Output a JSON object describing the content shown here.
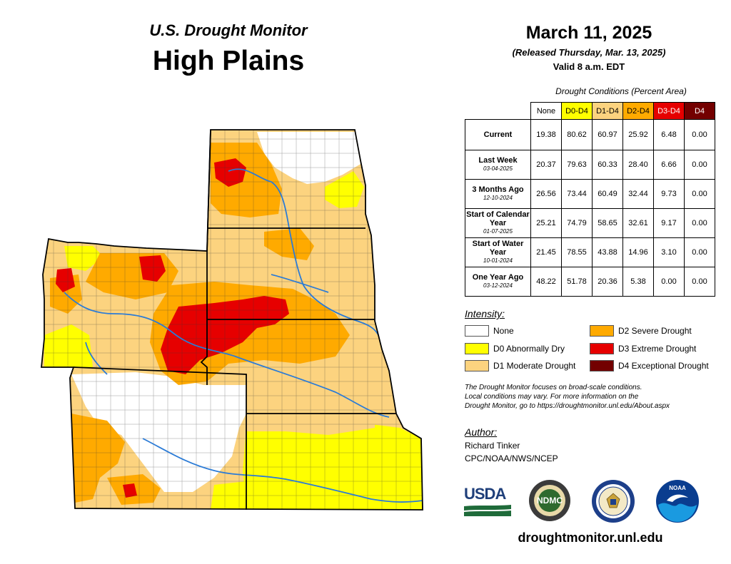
{
  "header": {
    "subtitle": "U.S. Drought Monitor",
    "region": "High Plains",
    "date": "March 11, 2025",
    "released": "(Released Thursday, Mar. 13, 2025)",
    "valid": "Valid 8 a.m. EDT"
  },
  "table": {
    "title": "Drought Conditions (Percent Area)",
    "columns": [
      "None",
      "D0-D4",
      "D1-D4",
      "D2-D4",
      "D3-D4",
      "D4"
    ],
    "column_colors": [
      "#ffffff",
      "#ffff00",
      "#fcd37f",
      "#ffaa00",
      "#e60000",
      "#730000"
    ],
    "rows": [
      {
        "label": "Current",
        "sublabel": "",
        "values": [
          "19.38",
          "80.62",
          "60.97",
          "25.92",
          "6.48",
          "0.00"
        ]
      },
      {
        "label": "Last Week",
        "sublabel": "03-04-2025",
        "values": [
          "20.37",
          "79.63",
          "60.33",
          "28.40",
          "6.66",
          "0.00"
        ]
      },
      {
        "label": "3 Months Ago",
        "sublabel": "12-10-2024",
        "values": [
          "26.56",
          "73.44",
          "60.49",
          "32.44",
          "9.73",
          "0.00"
        ]
      },
      {
        "label": "Start of Calendar Year",
        "sublabel": "01-07-2025",
        "values": [
          "25.21",
          "74.79",
          "58.65",
          "32.61",
          "9.17",
          "0.00"
        ]
      },
      {
        "label": "Start of Water Year",
        "sublabel": "10-01-2024",
        "values": [
          "21.45",
          "78.55",
          "43.88",
          "14.96",
          "3.10",
          "0.00"
        ]
      },
      {
        "label": "One Year Ago",
        "sublabel": "03-12-2024",
        "values": [
          "48.22",
          "51.78",
          "20.36",
          "5.38",
          "0.00",
          "0.00"
        ]
      }
    ]
  },
  "legend": {
    "title": "Intensity:",
    "items": [
      {
        "label": "None",
        "color": "#ffffff"
      },
      {
        "label": "D0 Abnormally Dry",
        "color": "#ffff00"
      },
      {
        "label": "D1 Moderate Drought",
        "color": "#fcd37f"
      },
      {
        "label": "D2 Severe Drought",
        "color": "#ffaa00"
      },
      {
        "label": "D3 Extreme Drought",
        "color": "#e60000"
      },
      {
        "label": "D4 Exceptional Drought",
        "color": "#730000"
      }
    ]
  },
  "note": {
    "line1": "The Drought Monitor focuses on broad-scale conditions.",
    "line2": "Local conditions may vary. For more information on the",
    "line3": "Drought Monitor, go to https://droughtmonitor.unl.edu/About.aspx"
  },
  "author": {
    "title": "Author:",
    "name": "Richard Tinker",
    "org": "CPC/NOAA/NWS/NCEP"
  },
  "logos": {
    "usda": "USDA",
    "ndmc": "NDMC",
    "noaa": "NOAA"
  },
  "footer": {
    "website": "droughtmonitor.unl.edu"
  }
}
